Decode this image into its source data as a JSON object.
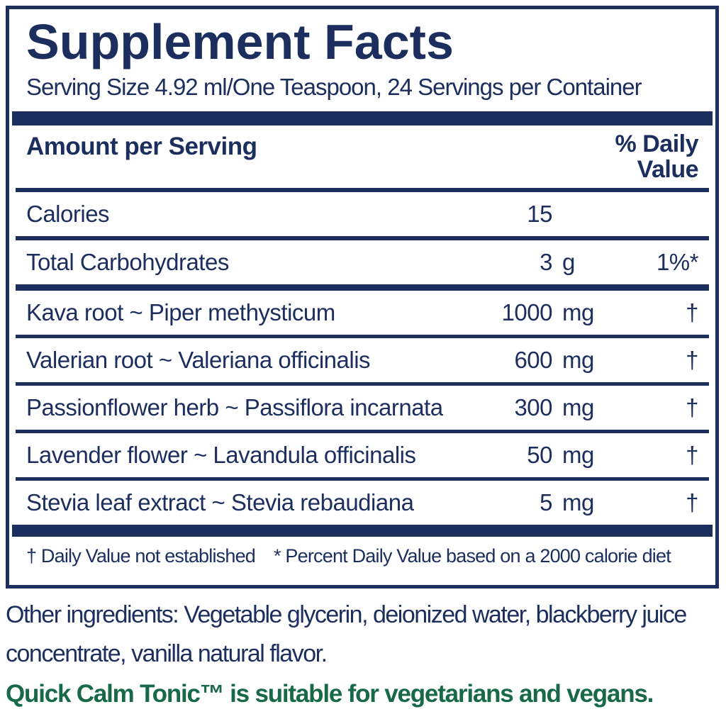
{
  "panel": {
    "title": "Supplement Facts",
    "serving_line": "Serving Size 4.92 ml/One Teaspoon, 24 Servings per Container",
    "header": {
      "amount_label": "Amount per Serving",
      "dv_label": "% Daily Value"
    },
    "rows": [
      {
        "name": "Calories",
        "amount": "15",
        "unit": "",
        "dv": ""
      },
      {
        "name": "Total Carbohydrates",
        "amount": "3",
        "unit": "g",
        "dv": "1%*"
      },
      {
        "name": "Kava root ~ Piper methysticum",
        "amount": "1000",
        "unit": "mg",
        "dv": "†"
      },
      {
        "name": "Valerian root ~ Valeriana officinalis",
        "amount": "600",
        "unit": "mg",
        "dv": "†"
      },
      {
        "name": "Passionflower herb ~ Passiflora incarnata",
        "amount": "300",
        "unit": "mg",
        "dv": "†"
      },
      {
        "name": "Lavender flower ~ Lavandula officinalis",
        "amount": "50",
        "unit": "mg",
        "dv": "†"
      },
      {
        "name": "Stevia leaf extract ~ Stevia rebaudiana",
        "amount": "5",
        "unit": "mg",
        "dv": "†"
      }
    ],
    "footnote_dagger": "† Daily Value not established",
    "footnote_percent": "* Percent Daily Value based on a 2000 calorie diet"
  },
  "below": {
    "other_ingredients": "Other ingredients: Vegetable glycerin, deionized water, blackberry juice concentrate, vanilla natural flavor.",
    "vegan_note": "Quick Calm Tonic™ is suitable for vegetarians and vegans."
  },
  "colors": {
    "navy": "#1b2e5e",
    "green": "#17694a"
  }
}
